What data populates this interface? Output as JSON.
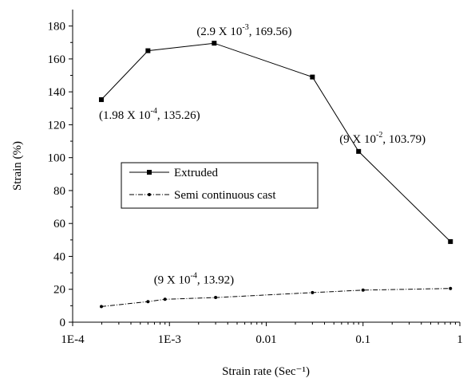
{
  "chart_data": {
    "type": "line",
    "xscale": "log",
    "xlim": [
      0.0001,
      1
    ],
    "ylim": [
      0,
      190
    ],
    "xlabel": "Strain rate (Sec⁻¹)",
    "ylabel": "Strain (%)",
    "xticks": [
      {
        "value": 0.0001,
        "label": "1E-4"
      },
      {
        "value": 0.001,
        "label": "1E-3"
      },
      {
        "value": 0.01,
        "label": "0.01"
      },
      {
        "value": 0.1,
        "label": "0.1"
      },
      {
        "value": 1,
        "label": "1"
      }
    ],
    "yticks": [
      0,
      20,
      40,
      60,
      80,
      100,
      120,
      140,
      160,
      180
    ],
    "grid": false,
    "legend_position": "center-left",
    "series": [
      {
        "name": "Extruded",
        "style": "solid",
        "marker": "square",
        "color": "#000000",
        "points": [
          {
            "x": 0.000198,
            "y": 135.26
          },
          {
            "x": 0.0006,
            "y": 165
          },
          {
            "x": 0.0029,
            "y": 169.56
          },
          {
            "x": 0.03,
            "y": 149
          },
          {
            "x": 0.09,
            "y": 103.79
          },
          {
            "x": 0.8,
            "y": 49
          }
        ]
      },
      {
        "name": "Semi continuous cast",
        "style": "dashdot",
        "marker": "dot",
        "color": "#000000",
        "points": [
          {
            "x": 0.000198,
            "y": 9.5
          },
          {
            "x": 0.0006,
            "y": 12.5
          },
          {
            "x": 0.0009,
            "y": 13.92
          },
          {
            "x": 0.003,
            "y": 15
          },
          {
            "x": 0.03,
            "y": 18
          },
          {
            "x": 0.1,
            "y": 19.5
          },
          {
            "x": 0.8,
            "y": 20.5
          }
        ]
      }
    ],
    "annotations": [
      {
        "base": "(1.98 X 10",
        "exp": "-4",
        "rest": ", 135.26)",
        "x": 0.000198,
        "y": 135.26
      },
      {
        "base": "(2.9 X 10",
        "exp": "-3",
        "rest": ", 169.56)",
        "x": 0.0029,
        "y": 169.56
      },
      {
        "base": "(9 X 10",
        "exp": "-2",
        "rest": ", 103.79)",
        "x": 0.09,
        "y": 103.79
      },
      {
        "base": "(9 X 10",
        "exp": "-4",
        "rest": ", 13.92)",
        "x": 0.0009,
        "y": 13.92
      }
    ]
  }
}
